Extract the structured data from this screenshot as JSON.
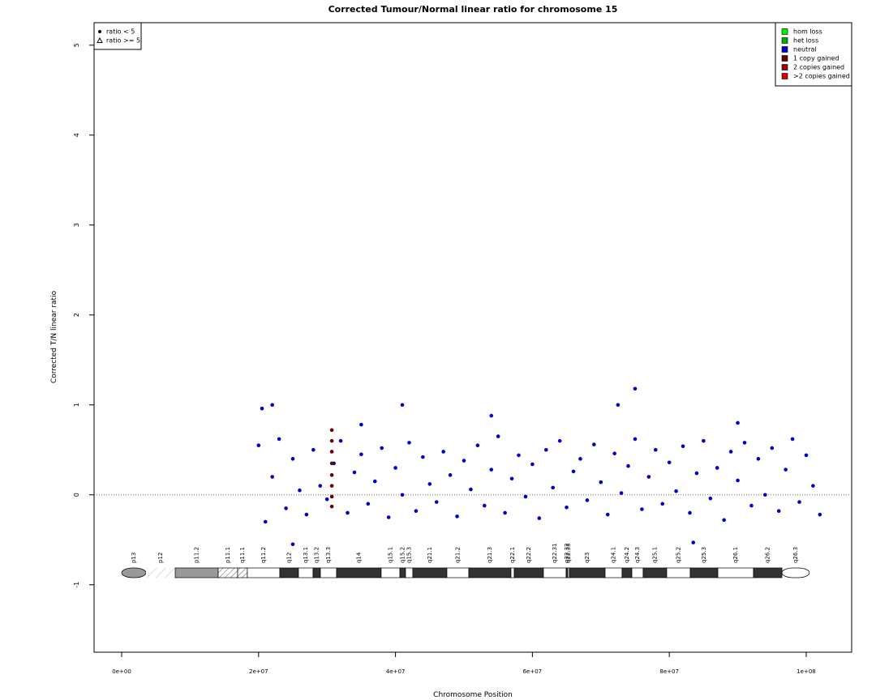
{
  "chart_data": {
    "type": "scatter",
    "title": "Corrected Tumour/Normal linear ratio for chromosome  15",
    "x_label": "Chromosome Position",
    "y_label": "Corrected T/N linear ratio",
    "xlim": [
      -4030000,
      106640000
    ],
    "ylim": [
      -1.75,
      5.25
    ],
    "xticks": [
      {
        "value": 0,
        "label": "0e+00"
      },
      {
        "value": 20000000,
        "label": "2e+07"
      },
      {
        "value": 40000000,
        "label": "4e+07"
      },
      {
        "value": 60000000,
        "label": "6e+07"
      },
      {
        "value": 80000000,
        "label": "8e+07"
      },
      {
        "value": 100000000,
        "label": "1e+08"
      }
    ],
    "yticks": [
      -1,
      0,
      1,
      2,
      3,
      4,
      5
    ],
    "reference_line": 0,
    "legend": "topright",
    "symbol_legend": [
      "ratio < 5",
      "ratio >= 5"
    ],
    "series": [
      {
        "name": "hom loss",
        "color": "#00ee00",
        "x": [],
        "values": []
      },
      {
        "name": "het loss",
        "color": "#00aa00",
        "x": [],
        "values": []
      },
      {
        "name": "neutral",
        "color": "#0000cc",
        "x": [
          20000000,
          21000000,
          22000000,
          23000000,
          24000000,
          25000000,
          26000000,
          27000000,
          28000000,
          29000000,
          30000000,
          31000000,
          32000000,
          33000000,
          34000000,
          35000000,
          36000000,
          37000000,
          38000000,
          39000000,
          40000000,
          41000000,
          42000000,
          43000000,
          44000000,
          45000000,
          46000000,
          47000000,
          48000000,
          49000000,
          50000000,
          51000000,
          52000000,
          53000000,
          54000000,
          55000000,
          56000000,
          57000000,
          58000000,
          59000000,
          60000000,
          61000000,
          62000000,
          63000000,
          64000000,
          65000000,
          66000000,
          67000000,
          68000000,
          69000000,
          70000000,
          71000000,
          72000000,
          73000000,
          74000000,
          75000000,
          76000000,
          77000000,
          78000000,
          79000000,
          80000000,
          81000000,
          82000000,
          83000000,
          84000000,
          85000000,
          86000000,
          87000000,
          88000000,
          89000000,
          90000000,
          91000000,
          92000000,
          93000000,
          94000000,
          95000000,
          96000000,
          97000000,
          98000000,
          99000000,
          100000000,
          101000000,
          102000000,
          20500000,
          22000000,
          25000000,
          41000000,
          72500000,
          75000000,
          83500000,
          35000000,
          54000000,
          90000000
        ],
        "values": [
          0.55,
          -0.3,
          0.2,
          0.62,
          -0.15,
          0.4,
          0.05,
          -0.22,
          0.5,
          0.1,
          -0.05,
          0.35,
          0.6,
          -0.2,
          0.25,
          0.45,
          -0.1,
          0.15,
          0.52,
          -0.25,
          0.3,
          0.0,
          0.58,
          -0.18,
          0.42,
          0.12,
          -0.08,
          0.48,
          0.22,
          -0.24,
          0.38,
          0.06,
          0.55,
          -0.12,
          0.28,
          0.65,
          -0.2,
          0.18,
          0.44,
          -0.02,
          0.34,
          -0.26,
          0.5,
          0.08,
          0.6,
          -0.14,
          0.26,
          0.4,
          -0.06,
          0.56,
          0.14,
          -0.22,
          0.46,
          0.02,
          0.32,
          0.62,
          -0.16,
          0.2,
          0.5,
          -0.1,
          0.36,
          0.04,
          0.54,
          -0.2,
          0.24,
          0.6,
          -0.04,
          0.3,
          -0.28,
          0.48,
          0.16,
          0.58,
          -0.12,
          0.4,
          0.0,
          0.52,
          -0.18,
          0.28,
          0.62,
          -0.08,
          0.44,
          0.1,
          -0.22,
          0.96,
          1.0,
          -0.55,
          1.0,
          1.0,
          1.18,
          -0.53,
          0.78,
          0.88,
          0.8
        ]
      },
      {
        "name": "1 copy gained",
        "color": "#6b0000",
        "x": [
          30700000,
          30700000,
          30700000,
          30700000,
          30700000,
          30700000,
          30700000,
          30700000
        ],
        "values": [
          0.72,
          0.6,
          0.48,
          0.35,
          0.22,
          0.1,
          -0.02,
          -0.13
        ]
      },
      {
        "name": "2 copies gained",
        "color": "#990000",
        "x": [],
        "values": []
      },
      {
        "name": ">2 copies gained",
        "color": "#dd0000",
        "x": [],
        "values": []
      }
    ],
    "ideogram": [
      {
        "label": "p13",
        "start": 0,
        "end": 3550000,
        "stain": "gvar"
      },
      {
        "label": "p12",
        "start": 3550000,
        "end": 7820000,
        "stain": "stalk"
      },
      {
        "label": "p11.2",
        "start": 7820000,
        "end": 14100000,
        "stain": "gpos50"
      },
      {
        "label": "p11.1",
        "start": 14100000,
        "end": 16940000,
        "stain": "acen"
      },
      {
        "label": "q11.1",
        "start": 16940000,
        "end": 18360000,
        "stain": "acen"
      },
      {
        "label": "q11.2",
        "start": 18360000,
        "end": 23100000,
        "stain": "gneg"
      },
      {
        "label": "q12",
        "start": 23100000,
        "end": 25830000,
        "stain": "gpos100"
      },
      {
        "label": "q13.1",
        "start": 25830000,
        "end": 27960000,
        "stain": "gneg"
      },
      {
        "label": "q13.2",
        "start": 27960000,
        "end": 29030000,
        "stain": "gpos100"
      },
      {
        "label": "q13.3",
        "start": 29030000,
        "end": 31400000,
        "stain": "gneg"
      },
      {
        "label": "q14",
        "start": 31400000,
        "end": 37910000,
        "stain": "gpos100"
      },
      {
        "label": "q15.1",
        "start": 37910000,
        "end": 40640000,
        "stain": "gneg"
      },
      {
        "label": "q15.2",
        "start": 40640000,
        "end": 41470000,
        "stain": "gpos100"
      },
      {
        "label": "q15.3",
        "start": 41470000,
        "end": 42530000,
        "stain": "gneg"
      },
      {
        "label": "q21.1",
        "start": 42530000,
        "end": 47510000,
        "stain": "gpos100"
      },
      {
        "label": "q21.2",
        "start": 47510000,
        "end": 50710000,
        "stain": "gneg"
      },
      {
        "label": "q21.3",
        "start": 50710000,
        "end": 56870000,
        "stain": "gpos100"
      },
      {
        "label": "q22.1",
        "start": 56870000,
        "end": 57350000,
        "stain": "gneg"
      },
      {
        "label": "q22.2",
        "start": 57350000,
        "end": 61610000,
        "stain": "gpos100"
      },
      {
        "label": "q22.31",
        "start": 61610000,
        "end": 64930000,
        "stain": "gneg"
      },
      {
        "label": "q22.32",
        "start": 64930000,
        "end": 65170000,
        "stain": "gpos100"
      },
      {
        "label": "q22.33",
        "start": 65170000,
        "end": 65400000,
        "stain": "gneg"
      },
      {
        "label": "q23",
        "start": 65400000,
        "end": 70620000,
        "stain": "gpos100"
      },
      {
        "label": "q24.1",
        "start": 70620000,
        "end": 73100000,
        "stain": "gneg"
      },
      {
        "label": "q24.2",
        "start": 73100000,
        "end": 74530000,
        "stain": "gpos100"
      },
      {
        "label": "q24.3",
        "start": 74530000,
        "end": 76180000,
        "stain": "gneg"
      },
      {
        "label": "q25.1",
        "start": 76180000,
        "end": 79620000,
        "stain": "gpos100"
      },
      {
        "label": "q25.2",
        "start": 79620000,
        "end": 83060000,
        "stain": "gneg"
      },
      {
        "label": "q25.3",
        "start": 83060000,
        "end": 87090000,
        "stain": "gpos100"
      },
      {
        "label": "q26.1",
        "start": 87090000,
        "end": 92300000,
        "stain": "gneg"
      },
      {
        "label": "q26.2",
        "start": 92300000,
        "end": 96450000,
        "stain": "gpos100"
      },
      {
        "label": "q26.3",
        "start": 96450000,
        "end": 100470000,
        "stain": "gneg"
      }
    ]
  }
}
